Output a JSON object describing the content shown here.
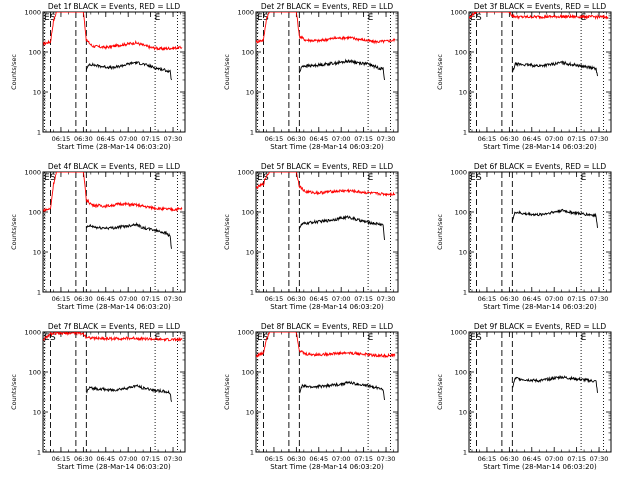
{
  "chart_data": [
    {
      "type": "line",
      "title": "Det 1f BLACK = Events, RED = LLD",
      "xlabel": "Start Time (28-Mar-14 06:03:20)",
      "ylabel": "Counts/sec",
      "yscale": "log",
      "ylim": [
        1,
        1000
      ],
      "xlim": [
        "06:03",
        "07:38"
      ],
      "x_ticks": [
        "06:15",
        "06:30",
        "06:45",
        "07:00",
        "07:15",
        "07:30"
      ],
      "y_ticks": [
        "1",
        "10",
        "100",
        "1000"
      ],
      "markers": [
        {
          "label": "E",
          "x": "06:04",
          "style": "dotted"
        },
        {
          "label": "S",
          "x": "06:08",
          "style": "dashed"
        },
        {
          "label": "",
          "x": "06:25",
          "style": "dashed"
        },
        {
          "label": "",
          "x": "06:32",
          "style": "dashed"
        },
        {
          "label": "E",
          "x": "07:18",
          "style": "dotted"
        },
        {
          "label": "",
          "x": "07:33",
          "style": "dotted"
        }
      ],
      "grid": false,
      "legend": "none",
      "series": [
        {
          "color": "#ff0000",
          "x": [
            "06:03",
            "06:08",
            "06:10",
            "06:12",
            "06:20",
            "06:25",
            "06:30",
            "06:32",
            "06:36",
            "06:45",
            "06:55",
            "07:05",
            "07:15",
            "07:22",
            "07:30",
            "07:36"
          ],
          "y": [
            160,
            180,
            600,
            1000,
            1000,
            1000,
            1000,
            200,
            140,
            130,
            150,
            170,
            130,
            120,
            125,
            130
          ]
        },
        {
          "color": "#000000",
          "x": [
            "06:32",
            "06:34",
            "06:40",
            "06:50",
            "07:00",
            "07:05",
            "07:10",
            "07:18",
            "07:25",
            "07:28",
            "07:29"
          ],
          "y": [
            35,
            50,
            45,
            40,
            50,
            55,
            50,
            40,
            35,
            32,
            20
          ]
        }
      ]
    },
    {
      "type": "line",
      "title": "Det 2f BLACK = Events, RED = LLD",
      "xlabel": "Start Time (28-Mar-14 06:03:20)",
      "ylabel": "Counts/sec",
      "yscale": "log",
      "ylim": [
        1,
        1000
      ],
      "xlim": [
        "06:03",
        "07:38"
      ],
      "x_ticks": [
        "06:15",
        "06:30",
        "06:45",
        "07:00",
        "07:15",
        "07:30"
      ],
      "y_ticks": [
        "1",
        "10",
        "100",
        "1000"
      ],
      "markers": [
        {
          "label": "E",
          "x": "06:04",
          "style": "dotted"
        },
        {
          "label": "S",
          "x": "06:08",
          "style": "dashed"
        },
        {
          "label": "",
          "x": "06:25",
          "style": "dashed"
        },
        {
          "label": "",
          "x": "06:32",
          "style": "dashed"
        },
        {
          "label": "E",
          "x": "07:18",
          "style": "dotted"
        },
        {
          "label": "",
          "x": "07:33",
          "style": "dotted"
        }
      ],
      "grid": false,
      "legend": "none",
      "series": [
        {
          "color": "#ff0000",
          "x": [
            "06:03",
            "06:08",
            "06:10",
            "06:12",
            "06:20",
            "06:25",
            "06:30",
            "06:32",
            "06:36",
            "06:45",
            "06:55",
            "07:05",
            "07:15",
            "07:22",
            "07:30",
            "07:36"
          ],
          "y": [
            180,
            200,
            700,
            1000,
            1000,
            1000,
            1000,
            250,
            200,
            190,
            220,
            230,
            200,
            180,
            185,
            200
          ]
        },
        {
          "color": "#000000",
          "x": [
            "06:32",
            "06:34",
            "06:40",
            "06:50",
            "07:00",
            "07:05",
            "07:10",
            "07:18",
            "07:25",
            "07:28",
            "07:29"
          ],
          "y": [
            30,
            45,
            45,
            50,
            55,
            60,
            55,
            50,
            40,
            38,
            20
          ]
        }
      ]
    },
    {
      "type": "line",
      "title": "Det 3f BLACK = Events, RED = LLD",
      "xlabel": "Start Time (28-Mar-14 06:03:20)",
      "ylabel": "Counts/sec",
      "yscale": "log",
      "ylim": [
        1,
        1000
      ],
      "xlim": [
        "06:03",
        "07:38"
      ],
      "x_ticks": [
        "06:15",
        "06:30",
        "06:45",
        "07:00",
        "07:15",
        "07:30"
      ],
      "y_ticks": [
        "1",
        "10",
        "100",
        "1000"
      ],
      "markers": [
        {
          "label": "E",
          "x": "06:04",
          "style": "dotted"
        },
        {
          "label": "S",
          "x": "06:08",
          "style": "dashed"
        },
        {
          "label": "",
          "x": "06:25",
          "style": "dashed"
        },
        {
          "label": "",
          "x": "06:32",
          "style": "dashed"
        },
        {
          "label": "E",
          "x": "07:18",
          "style": "dotted"
        },
        {
          "label": "",
          "x": "07:33",
          "style": "dotted"
        }
      ],
      "grid": false,
      "legend": "none",
      "series": [
        {
          "color": "#ff0000",
          "x": [
            "06:03",
            "06:06",
            "06:08",
            "06:30",
            "06:32",
            "06:36",
            "06:50",
            "07:05",
            "07:20",
            "07:36"
          ],
          "y": [
            700,
            900,
            1000,
            1000,
            800,
            750,
            760,
            770,
            760,
            750
          ]
        },
        {
          "color": "#000000",
          "x": [
            "06:32",
            "06:34",
            "06:40",
            "06:50",
            "07:00",
            "07:05",
            "07:10",
            "07:18",
            "07:25",
            "07:28",
            "07:29"
          ],
          "y": [
            30,
            50,
            48,
            45,
            50,
            55,
            50,
            45,
            40,
            38,
            25
          ]
        }
      ]
    },
    {
      "type": "line",
      "title": "Det 4f BLACK = Events, RED = LLD",
      "xlabel": "Start Time (28-Mar-14 06:03:20)",
      "ylabel": "Counts/sec",
      "yscale": "log",
      "ylim": [
        1,
        1000
      ],
      "xlim": [
        "06:03",
        "07:38"
      ],
      "x_ticks": [
        "06:15",
        "06:30",
        "06:45",
        "07:00",
        "07:15",
        "07:30"
      ],
      "y_ticks": [
        "1",
        "10",
        "100",
        "1000"
      ],
      "markers": [
        {
          "label": "E",
          "x": "06:04",
          "style": "dotted"
        },
        {
          "label": "S",
          "x": "06:08",
          "style": "dashed"
        },
        {
          "label": "",
          "x": "06:25",
          "style": "dashed"
        },
        {
          "label": "",
          "x": "06:32",
          "style": "dashed"
        },
        {
          "label": "E",
          "x": "07:18",
          "style": "dotted"
        },
        {
          "label": "",
          "x": "07:33",
          "style": "dotted"
        }
      ],
      "grid": false,
      "legend": "none",
      "series": [
        {
          "color": "#ff0000",
          "x": [
            "06:03",
            "06:08",
            "06:10",
            "06:12",
            "06:20",
            "06:25",
            "06:30",
            "06:32",
            "06:36",
            "06:45",
            "06:55",
            "07:05",
            "07:15",
            "07:22",
            "07:30",
            "07:36"
          ],
          "y": [
            110,
            120,
            500,
            1000,
            1000,
            1000,
            1000,
            200,
            150,
            140,
            160,
            150,
            130,
            120,
            115,
            120
          ]
        },
        {
          "color": "#000000",
          "x": [
            "06:32",
            "06:34",
            "06:40",
            "06:50",
            "07:00",
            "07:05",
            "07:10",
            "07:18",
            "07:25",
            "07:28",
            "07:29"
          ],
          "y": [
            40,
            45,
            40,
            40,
            45,
            50,
            40,
            35,
            30,
            25,
            12
          ]
        }
      ]
    },
    {
      "type": "line",
      "title": "Det 5f BLACK = Events, RED = LLD",
      "xlabel": "Start Time (28-Mar-14 06:03:20)",
      "ylabel": "Counts/sec",
      "yscale": "log",
      "ylim": [
        1,
        1000
      ],
      "xlim": [
        "06:03",
        "07:38"
      ],
      "x_ticks": [
        "06:15",
        "06:30",
        "06:45",
        "07:00",
        "07:15",
        "07:30"
      ],
      "y_ticks": [
        "1",
        "10",
        "100",
        "1000"
      ],
      "markers": [
        {
          "label": "E",
          "x": "06:04",
          "style": "dotted"
        },
        {
          "label": "S",
          "x": "06:08",
          "style": "dashed"
        },
        {
          "label": "",
          "x": "06:25",
          "style": "dashed"
        },
        {
          "label": "",
          "x": "06:32",
          "style": "dashed"
        },
        {
          "label": "E",
          "x": "07:18",
          "style": "dotted"
        },
        {
          "label": "",
          "x": "07:33",
          "style": "dotted"
        }
      ],
      "grid": false,
      "legend": "none",
      "series": [
        {
          "color": "#ff0000",
          "x": [
            "06:03",
            "06:08",
            "06:10",
            "06:12",
            "06:20",
            "06:25",
            "06:30",
            "06:32",
            "06:36",
            "06:45",
            "06:55",
            "07:05",
            "07:15",
            "07:22",
            "07:30",
            "07:36"
          ],
          "y": [
            400,
            500,
            800,
            1000,
            1000,
            1000,
            1000,
            450,
            320,
            300,
            330,
            340,
            310,
            290,
            280,
            280
          ]
        },
        {
          "color": "#000000",
          "x": [
            "06:32",
            "06:34",
            "06:40",
            "06:50",
            "07:00",
            "07:05",
            "07:10",
            "07:18",
            "07:25",
            "07:28",
            "07:29"
          ],
          "y": [
            40,
            50,
            55,
            60,
            70,
            75,
            65,
            55,
            50,
            48,
            20
          ]
        }
      ]
    },
    {
      "type": "line",
      "title": "Det 6f BLACK = Events, RED = LLD",
      "xlabel": "Start Time (28-Mar-14 06:03:20)",
      "ylabel": "Counts/sec",
      "yscale": "log",
      "ylim": [
        1,
        1000
      ],
      "xlim": [
        "06:03",
        "07:38"
      ],
      "x_ticks": [
        "06:15",
        "06:30",
        "06:45",
        "07:00",
        "07:15",
        "07:30"
      ],
      "y_ticks": [
        "1",
        "10",
        "100",
        "1000"
      ],
      "markers": [
        {
          "label": "E",
          "x": "06:04",
          "style": "dotted"
        },
        {
          "label": "S",
          "x": "06:08",
          "style": "dashed"
        },
        {
          "label": "",
          "x": "06:25",
          "style": "dashed"
        },
        {
          "label": "",
          "x": "06:32",
          "style": "dashed"
        },
        {
          "label": "E",
          "x": "07:18",
          "style": "dotted"
        },
        {
          "label": "",
          "x": "07:33",
          "style": "dotted"
        }
      ],
      "grid": false,
      "legend": "none",
      "series": [
        {
          "color": "#000000",
          "x": [
            "06:32",
            "06:34",
            "06:40",
            "06:50",
            "07:00",
            "07:05",
            "07:10",
            "07:18",
            "07:25",
            "07:28",
            "07:29"
          ],
          "y": [
            60,
            100,
            90,
            85,
            100,
            110,
            100,
            90,
            85,
            80,
            40
          ]
        }
      ]
    },
    {
      "type": "line",
      "title": "Det 7f BLACK = Events, RED = LLD",
      "xlabel": "Start Time (28-Mar-14 06:03:20)",
      "ylabel": "Counts/sec",
      "yscale": "log",
      "ylim": [
        1,
        1000
      ],
      "xlim": [
        "06:03",
        "07:38"
      ],
      "x_ticks": [
        "06:15",
        "06:30",
        "06:45",
        "07:00",
        "07:15",
        "07:30"
      ],
      "y_ticks": [
        "1",
        "10",
        "100",
        "1000"
      ],
      "markers": [
        {
          "label": "E",
          "x": "06:04",
          "style": "dotted"
        },
        {
          "label": "S",
          "x": "06:08",
          "style": "dashed"
        },
        {
          "label": "",
          "x": "06:25",
          "style": "dashed"
        },
        {
          "label": "",
          "x": "06:32",
          "style": "dashed"
        },
        {
          "label": "E",
          "x": "07:18",
          "style": "dotted"
        },
        {
          "label": "",
          "x": "07:33",
          "style": "dotted"
        }
      ],
      "grid": false,
      "legend": "none",
      "series": [
        {
          "color": "#ff0000",
          "x": [
            "06:03",
            "06:06",
            "06:08",
            "06:25",
            "06:30",
            "06:32",
            "06:36",
            "06:50",
            "07:05",
            "07:20",
            "07:36"
          ],
          "y": [
            650,
            750,
            900,
            950,
            900,
            750,
            700,
            680,
            700,
            650,
            640
          ]
        },
        {
          "color": "#000000",
          "x": [
            "06:32",
            "06:34",
            "06:40",
            "06:50",
            "07:00",
            "07:05",
            "07:10",
            "07:18",
            "07:25",
            "07:28",
            "07:29"
          ],
          "y": [
            30,
            40,
            38,
            35,
            40,
            45,
            40,
            35,
            32,
            30,
            18
          ]
        }
      ]
    },
    {
      "type": "line",
      "title": "Det 8f BLACK = Events, RED = LLD",
      "xlabel": "Start Time (28-Mar-14 06:03:20)",
      "ylabel": "Counts/sec",
      "yscale": "log",
      "ylim": [
        1,
        1000
      ],
      "xlim": [
        "06:03",
        "07:38"
      ],
      "x_ticks": [
        "06:15",
        "06:30",
        "06:45",
        "07:00",
        "07:15",
        "07:30"
      ],
      "y_ticks": [
        "1",
        "10",
        "100",
        "1000"
      ],
      "markers": [
        {
          "label": "E",
          "x": "06:04",
          "style": "dotted"
        },
        {
          "label": "S",
          "x": "06:08",
          "style": "dashed"
        },
        {
          "label": "",
          "x": "06:25",
          "style": "dashed"
        },
        {
          "label": "",
          "x": "06:32",
          "style": "dashed"
        },
        {
          "label": "E",
          "x": "07:18",
          "style": "dotted"
        },
        {
          "label": "",
          "x": "07:33",
          "style": "dotted"
        }
      ],
      "grid": false,
      "legend": "none",
      "series": [
        {
          "color": "#ff0000",
          "x": [
            "06:03",
            "06:08",
            "06:10",
            "06:12",
            "06:20",
            "06:25",
            "06:30",
            "06:32",
            "06:36",
            "06:45",
            "06:55",
            "07:05",
            "07:15",
            "07:22",
            "07:30",
            "07:36"
          ],
          "y": [
            250,
            300,
            700,
            1000,
            1000,
            1000,
            1000,
            350,
            280,
            270,
            290,
            300,
            280,
            260,
            255,
            260
          ]
        },
        {
          "color": "#000000",
          "x": [
            "06:32",
            "06:34",
            "06:40",
            "06:50",
            "07:00",
            "07:05",
            "07:10",
            "07:18",
            "07:25",
            "07:28",
            "07:29"
          ],
          "y": [
            30,
            45,
            42,
            45,
            50,
            55,
            50,
            45,
            40,
            38,
            20
          ]
        }
      ]
    },
    {
      "type": "line",
      "title": "Det 9f BLACK = Events, RED = LLD",
      "xlabel": "Start Time (28-Mar-14 06:03:20)",
      "ylabel": "Counts/sec",
      "yscale": "log",
      "ylim": [
        1,
        1000
      ],
      "xlim": [
        "06:03",
        "07:38"
      ],
      "x_ticks": [
        "06:15",
        "06:30",
        "06:45",
        "07:00",
        "07:15",
        "07:30"
      ],
      "y_ticks": [
        "1",
        "10",
        "100",
        "1000"
      ],
      "markers": [
        {
          "label": "E",
          "x": "06:04",
          "style": "dotted"
        },
        {
          "label": "S",
          "x": "06:08",
          "style": "dashed"
        },
        {
          "label": "",
          "x": "06:25",
          "style": "dashed"
        },
        {
          "label": "",
          "x": "06:32",
          "style": "dashed"
        },
        {
          "label": "E",
          "x": "07:18",
          "style": "dotted"
        },
        {
          "label": "",
          "x": "07:33",
          "style": "dotted"
        }
      ],
      "grid": false,
      "legend": "none",
      "series": [
        {
          "color": "#000000",
          "x": [
            "06:32",
            "06:34",
            "06:40",
            "06:50",
            "07:00",
            "07:05",
            "07:10",
            "07:18",
            "07:25",
            "07:28",
            "07:29"
          ],
          "y": [
            40,
            70,
            65,
            60,
            70,
            75,
            70,
            65,
            60,
            58,
            30
          ]
        }
      ]
    }
  ]
}
